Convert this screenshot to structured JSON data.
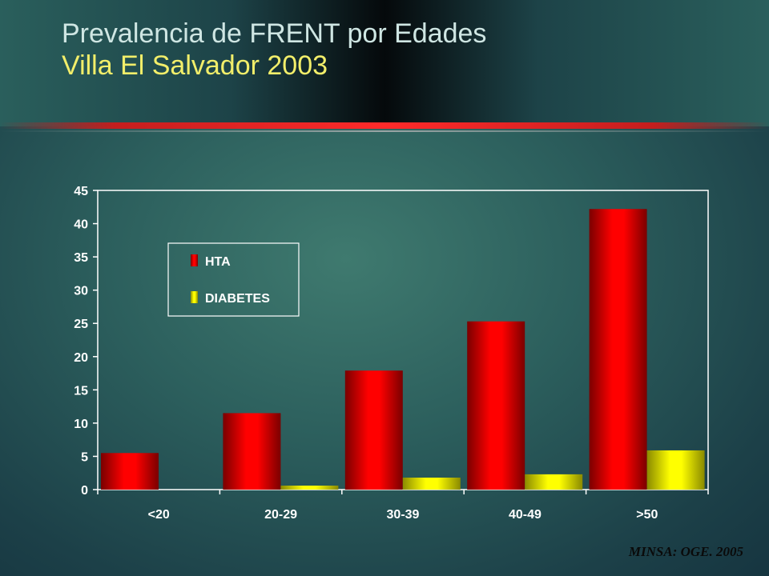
{
  "title": {
    "line1": "Prevalencia de FRENT por Edades",
    "line2": "Villa El Salvador 2003"
  },
  "source": "MINSA: OGE. 2005",
  "colors": {
    "title_main": "#cfe6e3",
    "title_sub": "#f2ee6a",
    "hta": "#e00000",
    "diabetes": "#f2f200"
  },
  "chart_data": {
    "type": "bar",
    "categories": [
      "<20",
      "20-29",
      "30-39",
      "40-49",
      ">50"
    ],
    "series": [
      {
        "name": "HTA",
        "values": [
          5.5,
          11.5,
          17.9,
          25.3,
          42.2
        ]
      },
      {
        "name": "DIABETES",
        "values": [
          0,
          0.6,
          1.8,
          2.3,
          5.9
        ]
      }
    ],
    "ylim": [
      0,
      45
    ],
    "yticks": [
      0,
      5,
      10,
      15,
      20,
      25,
      30,
      35,
      40,
      45
    ],
    "grid": false,
    "legend": "top-left"
  }
}
